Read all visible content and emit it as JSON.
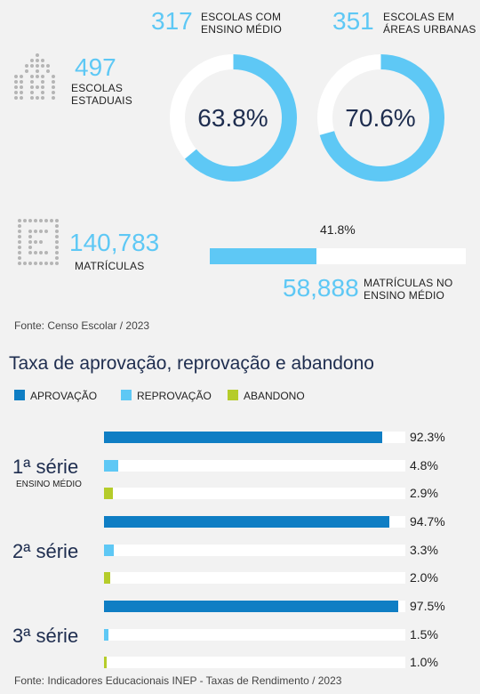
{
  "top": {
    "escolas_estaduais": {
      "number": "497",
      "label1": "ESCOLAS",
      "label2": "ESTADUAIS"
    },
    "ring1": {
      "number": "317",
      "label1": "ESCOLAS COM",
      "label2": "ENSINO MÉDIO",
      "percent_text": "63.8%",
      "fraction": 0.638
    },
    "ring2": {
      "number": "351",
      "label1": "ESCOLAS EM",
      "label2": "ÁREAS URBANAS",
      "percent_text": "70.6%",
      "fraction": 0.706
    },
    "matriculas": {
      "number": "140,783",
      "label": "MATRÍCULAS"
    },
    "matriculas_em": {
      "percent_text": "41.8%",
      "fraction": 0.418,
      "number": "58,888",
      "label1": "MATRÍCULAS NO",
      "label2": "ENSINO MÉDIO"
    },
    "source": "Fonte: Censo Escolar / 2023"
  },
  "colors": {
    "aprovacao": "#0f7ec4",
    "reprovacao": "#5ec8f5",
    "abandono": "#b5cc2a",
    "ring_track": "#ffffff"
  },
  "chart_data": {
    "type": "bar",
    "title": "Taxa de aprovação, reprovação e abandono",
    "legend": [
      "APROVAÇÃO",
      "REPROVAÇÃO",
      "ABANDONO"
    ],
    "groups": [
      {
        "label": "1ª série",
        "sublabel": "ENSINO MÉDIO",
        "values": [
          92.3,
          4.8,
          2.9
        ],
        "labels": [
          "92.3%",
          "4.8%",
          "2.9%"
        ]
      },
      {
        "label": "2ª série",
        "sublabel": "",
        "values": [
          94.7,
          3.3,
          2.0
        ],
        "labels": [
          "94.7%",
          "3.3%",
          "2.0%"
        ]
      },
      {
        "label": "3ª série",
        "sublabel": "",
        "values": [
          97.5,
          1.5,
          1.0
        ],
        "labels": [
          "97.5%",
          "1.5%",
          "1.0%"
        ]
      }
    ],
    "ylim": [
      0,
      100
    ],
    "source": "Fonte: Indicadores Educacionais INEP - Taxas de Rendimento / 2023"
  }
}
